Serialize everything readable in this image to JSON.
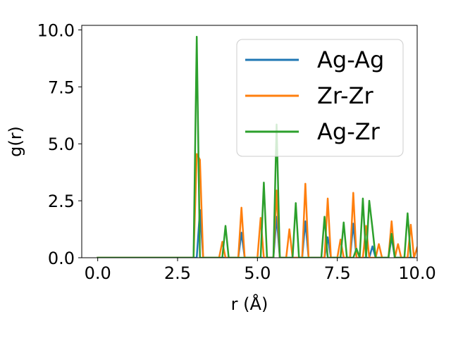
{
  "chart_data": {
    "type": "line",
    "title": "",
    "xlabel": "r (Å)",
    "ylabel": "g(r)",
    "xlim": [
      -0.5,
      10.0
    ],
    "ylim": [
      0.0,
      10.2
    ],
    "xticks": [
      0.0,
      2.5,
      5.0,
      7.5,
      10.0
    ],
    "xtick_labels": [
      "0.0",
      "2.5",
      "5.0",
      "7.5",
      "10.0"
    ],
    "yticks": [
      0.0,
      2.5,
      5.0,
      7.5,
      10.0
    ],
    "ytick_labels": [
      "0.0",
      "2.5",
      "5.0",
      "7.5",
      "10.0"
    ],
    "grid": false,
    "legend_position": "top-right",
    "series": [
      {
        "name": "Ag-Ag",
        "color": "#1f77b4",
        "points": [
          [
            0.0,
            0
          ],
          [
            2.9,
            0
          ],
          [
            3.0,
            0
          ],
          [
            3.1,
            0
          ],
          [
            3.2,
            2.1
          ],
          [
            3.3,
            0
          ],
          [
            4.4,
            0
          ],
          [
            4.5,
            1.1
          ],
          [
            4.6,
            0
          ],
          [
            5.5,
            0
          ],
          [
            5.6,
            1.8
          ],
          [
            5.7,
            0
          ],
          [
            6.4,
            0
          ],
          [
            6.5,
            1.6
          ],
          [
            6.6,
            0
          ],
          [
            7.1,
            0
          ],
          [
            7.2,
            0.9
          ],
          [
            7.3,
            0
          ],
          [
            7.9,
            0
          ],
          [
            8.0,
            1.5
          ],
          [
            8.1,
            0
          ],
          [
            8.5,
            0
          ],
          [
            8.6,
            0.5
          ],
          [
            8.7,
            0
          ],
          [
            9.1,
            0
          ],
          [
            9.2,
            0.9
          ],
          [
            9.3,
            0
          ],
          [
            9.9,
            0
          ]
        ]
      },
      {
        "name": "Zr-Zr",
        "color": "#ff7f0e",
        "points": [
          [
            0.0,
            0
          ],
          [
            2.9,
            0
          ],
          [
            3.0,
            0
          ],
          [
            3.1,
            4.55
          ],
          [
            3.2,
            4.3
          ],
          [
            3.3,
            0
          ],
          [
            3.8,
            0
          ],
          [
            3.9,
            0.7
          ],
          [
            4.0,
            0
          ],
          [
            4.4,
            0
          ],
          [
            4.5,
            2.2
          ],
          [
            4.6,
            0
          ],
          [
            5.0,
            0
          ],
          [
            5.1,
            1.75
          ],
          [
            5.2,
            0
          ],
          [
            5.5,
            0
          ],
          [
            5.6,
            2.95
          ],
          [
            5.7,
            0
          ],
          [
            5.9,
            0
          ],
          [
            6.0,
            1.25
          ],
          [
            6.1,
            0
          ],
          [
            6.4,
            0
          ],
          [
            6.5,
            3.25
          ],
          [
            6.6,
            0
          ],
          [
            7.1,
            0
          ],
          [
            7.2,
            2.6
          ],
          [
            7.3,
            0
          ],
          [
            7.5,
            0
          ],
          [
            7.6,
            0.8
          ],
          [
            7.7,
            0
          ],
          [
            7.9,
            0
          ],
          [
            8.0,
            2.85
          ],
          [
            8.1,
            0
          ],
          [
            8.3,
            0
          ],
          [
            8.4,
            1.4
          ],
          [
            8.5,
            0
          ],
          [
            8.7,
            0
          ],
          [
            8.8,
            0.6
          ],
          [
            8.9,
            0
          ],
          [
            9.1,
            0
          ],
          [
            9.2,
            1.6
          ],
          [
            9.3,
            0
          ],
          [
            9.4,
            0.6
          ],
          [
            9.5,
            0
          ],
          [
            9.7,
            0
          ],
          [
            9.8,
            1.45
          ],
          [
            9.9,
            0
          ],
          [
            10.0,
            0.45
          ]
        ]
      },
      {
        "name": "Ag-Zr",
        "color": "#2ca02c",
        "points": [
          [
            0.0,
            0
          ],
          [
            2.9,
            0
          ],
          [
            3.0,
            0
          ],
          [
            3.1,
            9.7
          ],
          [
            3.2,
            0
          ],
          [
            3.9,
            0
          ],
          [
            4.0,
            1.4
          ],
          [
            4.1,
            0
          ],
          [
            5.1,
            0
          ],
          [
            5.2,
            3.3
          ],
          [
            5.3,
            0
          ],
          [
            5.5,
            0
          ],
          [
            5.6,
            5.85
          ],
          [
            5.7,
            0
          ],
          [
            6.1,
            0
          ],
          [
            6.2,
            2.4
          ],
          [
            6.3,
            0
          ],
          [
            7.0,
            0
          ],
          [
            7.1,
            1.8
          ],
          [
            7.2,
            0
          ],
          [
            7.6,
            0
          ],
          [
            7.7,
            1.55
          ],
          [
            7.8,
            0
          ],
          [
            8.0,
            0
          ],
          [
            8.1,
            0.4
          ],
          [
            8.2,
            0
          ],
          [
            8.3,
            2.6
          ],
          [
            8.4,
            0
          ],
          [
            8.5,
            2.5
          ],
          [
            8.6,
            1.3
          ],
          [
            8.7,
            0
          ],
          [
            9.1,
            0
          ],
          [
            9.2,
            1.05
          ],
          [
            9.3,
            0
          ],
          [
            9.6,
            0
          ],
          [
            9.7,
            1.95
          ],
          [
            9.8,
            0
          ]
        ]
      }
    ]
  }
}
